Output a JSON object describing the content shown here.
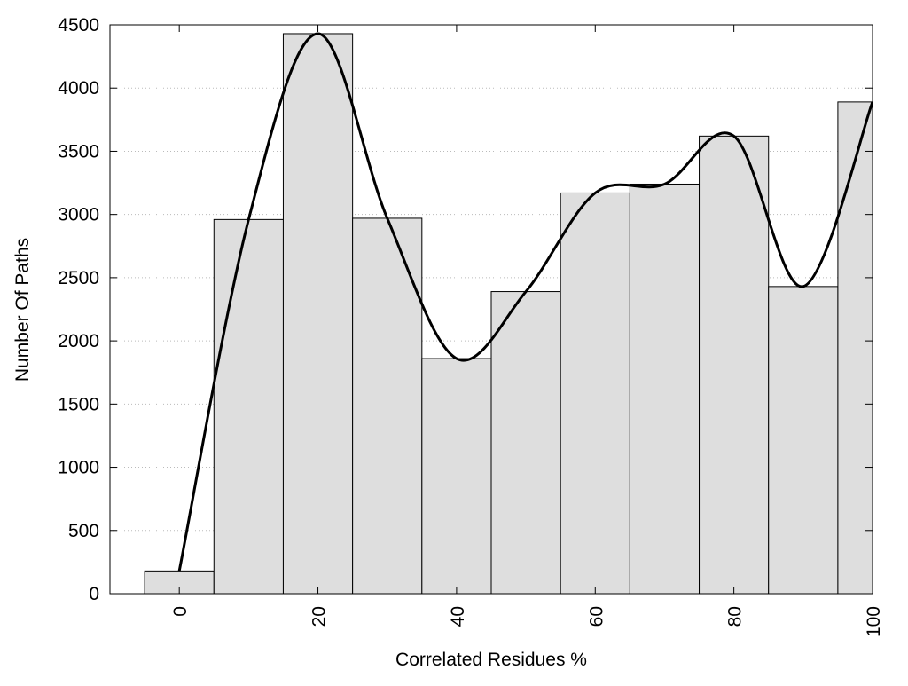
{
  "chart_data": {
    "type": "bar",
    "x_label": "Correlated Residues %",
    "y_label": "Number Of Paths",
    "x": [
      0,
      10,
      20,
      30,
      40,
      50,
      60,
      70,
      80,
      90,
      100
    ],
    "values": [
      180,
      2960,
      4430,
      2970,
      1860,
      2390,
      3170,
      3240,
      3620,
      2430,
      3890
    ],
    "color": "#dedede",
    "line_color": "#000000",
    "smooth_line": true,
    "xlim": [
      -10,
      100
    ],
    "xticks": [
      0,
      20,
      40,
      60,
      80,
      100
    ],
    "ylim": [
      0,
      4500
    ],
    "yticks": [
      0,
      500,
      1000,
      1500,
      2000,
      2500,
      3000,
      3500,
      4000,
      4500
    ],
    "grid": true
  }
}
